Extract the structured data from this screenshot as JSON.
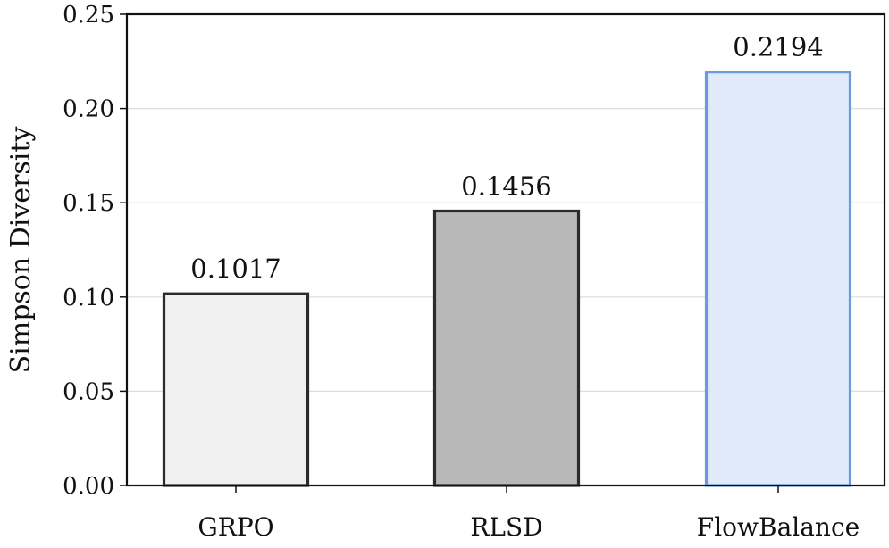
{
  "chart_data": {
    "type": "bar",
    "title": "",
    "xlabel": "",
    "ylabel": "Simpson Diversity",
    "categories": [
      "GRPO",
      "RLSD",
      "FlowBalance"
    ],
    "values": [
      0.1017,
      0.1456,
      0.2194
    ],
    "value_labels": [
      "0.1017",
      "0.1456",
      "0.2194"
    ],
    "ylim": [
      0,
      0.25
    ],
    "yticks": [
      0.0,
      0.05,
      0.1,
      0.15,
      0.2,
      0.25
    ],
    "ytick_labels": [
      "0.00",
      "0.05",
      "0.10",
      "0.15",
      "0.20",
      "0.25"
    ],
    "grid": "horizontal",
    "legend": "none",
    "bar_fill_colors": [
      "#f0f0f0",
      "#b8b8b8",
      "#e1eaf9"
    ],
    "bar_edge_colors": [
      "#2b2b2b",
      "#2b2b2b",
      "#6a9be0"
    ],
    "grid_color": "#dddddd",
    "axis_color": "#111111"
  }
}
